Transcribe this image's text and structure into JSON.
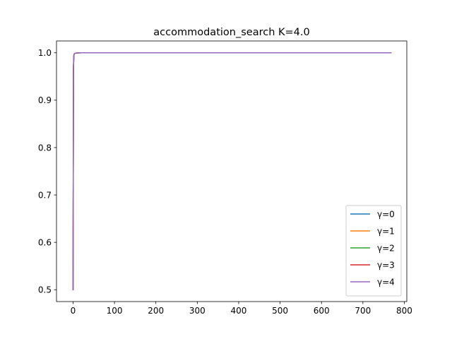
{
  "chart_data": {
    "type": "line",
    "title": "accommodation_search K=4.0",
    "xlabel": "",
    "ylabel": "",
    "xlim": [
      -40,
      806
    ],
    "ylim": [
      0.475,
      1.025
    ],
    "x_ticks": [
      0,
      100,
      200,
      300,
      400,
      500,
      600,
      700,
      800
    ],
    "x_tick_labels": [
      "0",
      "100",
      "200",
      "300",
      "400",
      "500",
      "600",
      "700",
      "800"
    ],
    "y_ticks": [
      0.5,
      0.6,
      0.7,
      0.8,
      0.9,
      1.0
    ],
    "y_tick_labels": [
      "0.5",
      "0.6",
      "0.7",
      "0.8",
      "0.9",
      "1.0"
    ],
    "grid": false,
    "legend_position": "lower-right",
    "series": [
      {
        "name": "γ=0",
        "color": "#1f77b4",
        "x": [
          0,
          1,
          2,
          3,
          5,
          8,
          12,
          20,
          30,
          50
        ],
        "y": [
          0.5,
          0.97,
          0.995,
          0.998,
          0.999,
          0.9995,
          0.9998,
          1.0,
          1.0,
          1.0
        ]
      },
      {
        "name": "γ=1",
        "color": "#ff7f0e",
        "x": [
          0,
          1,
          2,
          3,
          5,
          8,
          12,
          20,
          40,
          60
        ],
        "y": [
          0.5,
          0.97,
          0.995,
          0.998,
          0.999,
          0.9995,
          0.9998,
          1.0,
          1.0,
          1.0
        ]
      },
      {
        "name": "γ=2",
        "color": "#2ca02c",
        "x": [
          0,
          1,
          2,
          3,
          5,
          8,
          12,
          20,
          50,
          100
        ],
        "y": [
          0.5,
          0.97,
          0.995,
          0.998,
          0.999,
          0.9995,
          0.9998,
          1.0,
          1.0,
          1.0
        ]
      },
      {
        "name": "γ=3",
        "color": "#d62728",
        "x": [
          0,
          1,
          2,
          3,
          5,
          8,
          12,
          20,
          100,
          192
        ],
        "y": [
          0.5,
          0.97,
          0.995,
          0.998,
          0.999,
          0.9995,
          0.9998,
          1.0,
          1.0,
          1.0
        ]
      },
      {
        "name": "γ=4",
        "color": "#9467bd",
        "x": [
          0,
          1,
          2,
          3,
          5,
          8,
          12,
          20,
          200,
          768
        ],
        "y": [
          0.5,
          0.97,
          0.995,
          0.998,
          0.999,
          0.9995,
          0.9998,
          1.0,
          1.0,
          1.0
        ]
      }
    ]
  }
}
